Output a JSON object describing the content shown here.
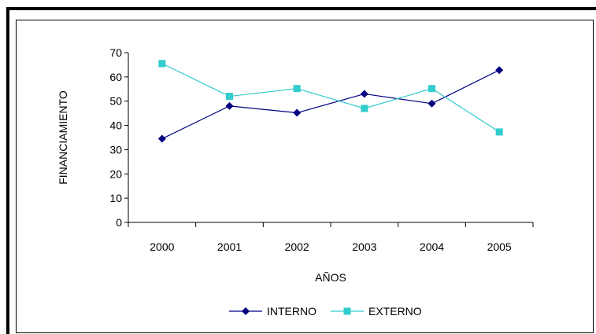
{
  "chart_data": {
    "type": "line",
    "title": "",
    "xlabel": "AÑOS",
    "ylabel": "FINANCIAMIENTO",
    "categories": [
      "2000",
      "2001",
      "2002",
      "2003",
      "2004",
      "2005"
    ],
    "ylim": [
      0,
      70
    ],
    "yticks": [
      "0",
      "10",
      "20",
      "30",
      "40",
      "50",
      "60",
      "70"
    ],
    "legend_position": "bottom",
    "grid": false,
    "series": [
      {
        "name": "INTERNO",
        "values": [
          34.5,
          48,
          45.2,
          53,
          49,
          62.8
        ],
        "color": "#000080",
        "marker": "diamond"
      },
      {
        "name": "EXTERNO",
        "values": [
          65.5,
          52,
          55.2,
          47,
          55.2,
          37.3
        ],
        "color": "#33CCCC",
        "marker": "square"
      }
    ]
  }
}
